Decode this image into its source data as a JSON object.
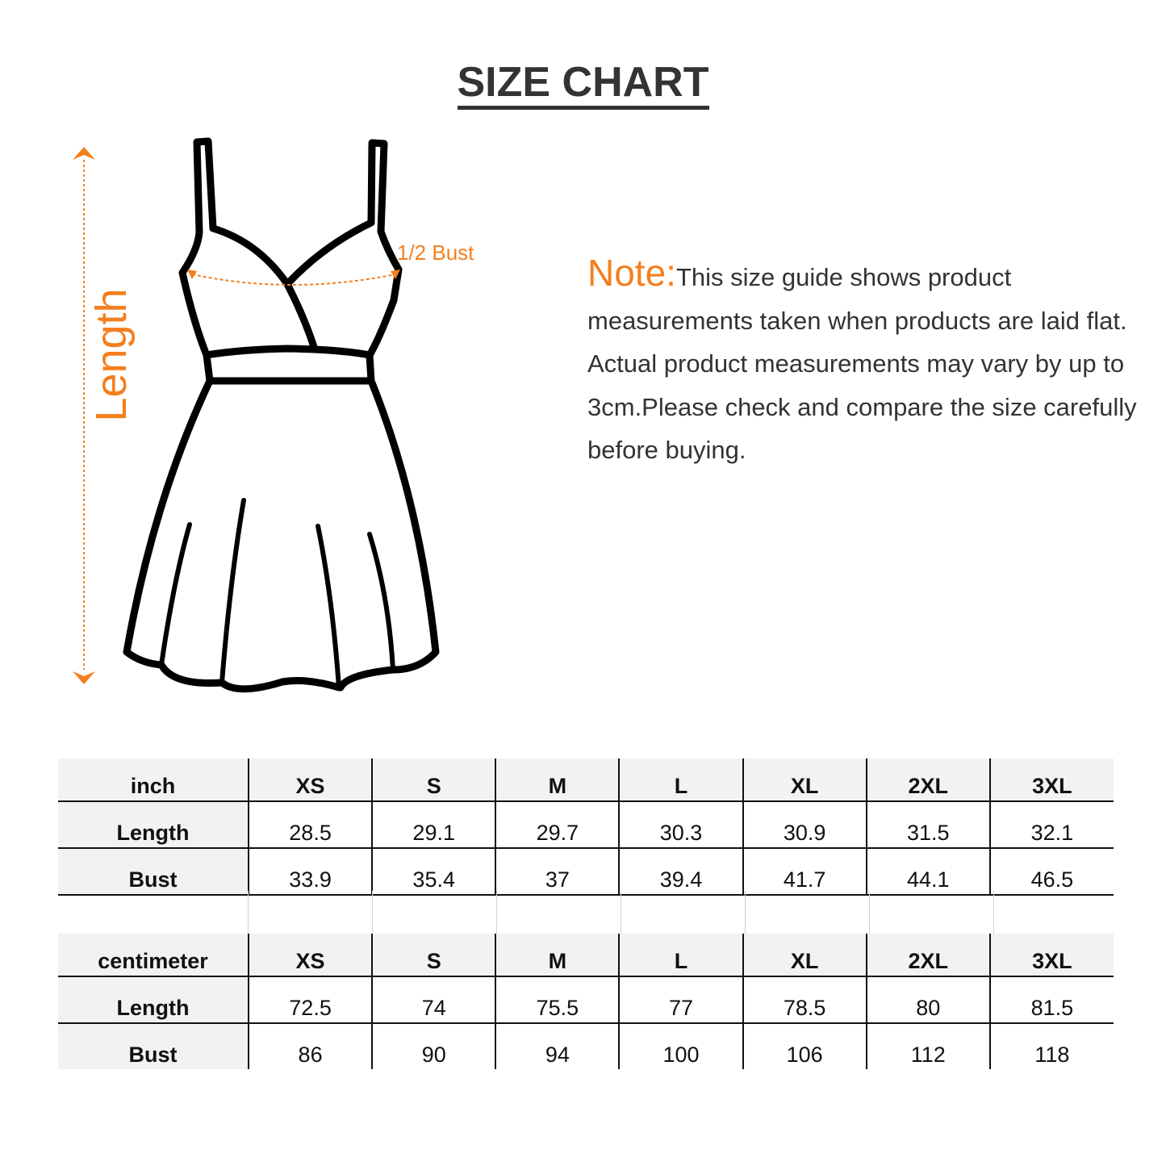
{
  "title": "SIZE CHART",
  "diagram": {
    "length_label": "Length",
    "bust_label": "1/2 Bust",
    "accent": "#f47f1e"
  },
  "note": {
    "label": "Note:",
    "text": "This size guide shows product measurements taken when products are laid flat. Actual product measurements may vary by up to 3cm.Please check and compare the size carefully before buying."
  },
  "sizes": [
    "XS",
    "S",
    "M",
    "L",
    "XL",
    "2XL",
    "3XL"
  ],
  "inch": {
    "unit": "inch",
    "rows": [
      {
        "label": "Length",
        "values": [
          "28.5",
          "29.1",
          "29.7",
          "30.3",
          "30.9",
          "31.5",
          "32.1"
        ]
      },
      {
        "label": "Bust",
        "values": [
          "33.9",
          "35.4",
          "37",
          "39.4",
          "41.7",
          "44.1",
          "46.5"
        ]
      }
    ]
  },
  "cm": {
    "unit": "centimeter",
    "rows": [
      {
        "label": "Length",
        "values": [
          "72.5",
          "74",
          "75.5",
          "77",
          "78.5",
          "80",
          "81.5"
        ]
      },
      {
        "label": "Bust",
        "values": [
          "86",
          "90",
          "94",
          "100",
          "106",
          "112",
          "118"
        ]
      }
    ]
  }
}
